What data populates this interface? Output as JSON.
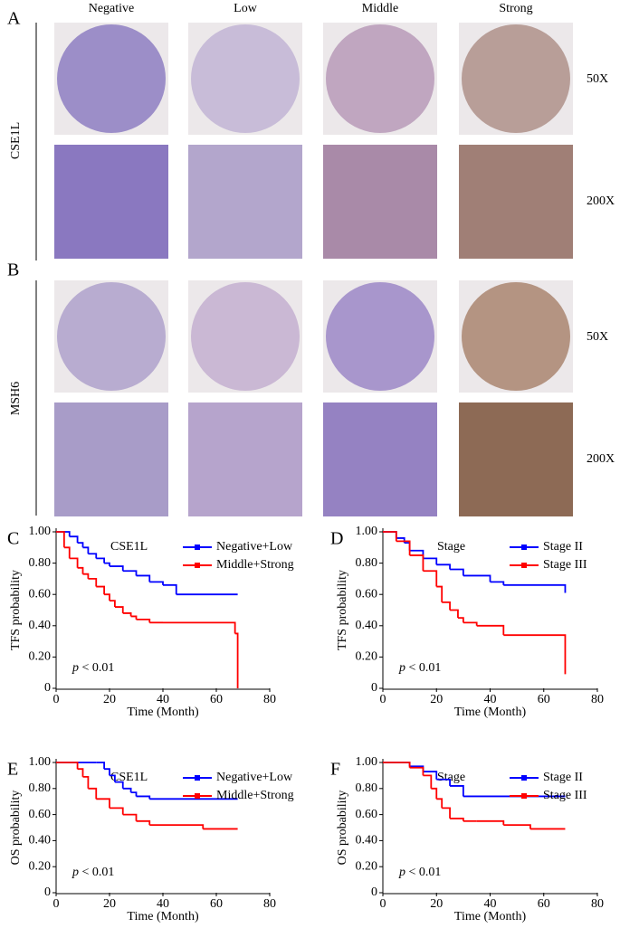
{
  "panel_labels": [
    "A",
    "B",
    "C",
    "D",
    "E",
    "F"
  ],
  "ihc": {
    "columns": [
      "Negative",
      "Low",
      "Middle",
      "Strong"
    ],
    "magnifications": [
      "50X",
      "200X"
    ],
    "markers": [
      "CSE1L",
      "MSH6"
    ]
  },
  "chart_data": [
    {
      "type": "step",
      "title": "CSE1L",
      "xlabel": "Time (Month)",
      "ylabel": "TFS probability",
      "annotation": {
        "symbol": "p",
        "text": "< 0.01"
      },
      "xlim": [
        0,
        80
      ],
      "xticks": [
        0,
        20,
        40,
        60,
        80
      ],
      "ylim": [
        0,
        1
      ],
      "yticks": [
        0,
        {
          "value": 0.2,
          "label": "0.20"
        },
        {
          "value": 0.4,
          "label": "0.40"
        },
        {
          "value": 0.6,
          "label": "0.60"
        },
        {
          "value": 0.8,
          "label": "0.80"
        },
        {
          "value": 1,
          "label": "1.00"
        }
      ],
      "series": [
        {
          "name": "Negative+Low",
          "color": "#0000ff",
          "x": [
            0,
            5,
            8,
            10,
            12,
            15,
            18,
            20,
            25,
            30,
            35,
            40,
            45,
            68
          ],
          "values": [
            1,
            0.97,
            0.93,
            0.9,
            0.86,
            0.83,
            0.8,
            0.78,
            0.75,
            0.72,
            0.68,
            0.66,
            0.6,
            0.6
          ]
        },
        {
          "name": "Middle+Strong",
          "color": "#ff0000",
          "x": [
            0,
            3,
            5,
            8,
            10,
            12,
            15,
            18,
            20,
            22,
            25,
            28,
            30,
            35,
            40,
            67,
            68
          ],
          "values": [
            1,
            0.9,
            0.83,
            0.77,
            0.73,
            0.7,
            0.65,
            0.6,
            0.56,
            0.52,
            0.48,
            0.46,
            0.44,
            0.42,
            0.42,
            0.35,
            0
          ]
        }
      ]
    },
    {
      "type": "step",
      "title": "Stage",
      "xlabel": "Time (Month)",
      "ylabel": "TFS probability",
      "annotation": {
        "symbol": "p",
        "text": "< 0.01"
      },
      "xlim": [
        0,
        80
      ],
      "xticks": [
        0,
        20,
        40,
        60,
        80
      ],
      "ylim": [
        0,
        1
      ],
      "yticks": [
        0,
        {
          "value": 0.2,
          "label": "0.20"
        },
        {
          "value": 0.4,
          "label": "0.40"
        },
        {
          "value": 0.6,
          "label": "0.60"
        },
        {
          "value": 0.8,
          "label": "0.80"
        },
        {
          "value": 1,
          "label": "1.00"
        }
      ],
      "series": [
        {
          "name": "Stage II",
          "color": "#0000ff",
          "x": [
            0,
            5,
            8,
            10,
            15,
            20,
            25,
            30,
            40,
            45,
            67,
            68
          ],
          "values": [
            1,
            0.96,
            0.93,
            0.88,
            0.83,
            0.79,
            0.76,
            0.72,
            0.68,
            0.66,
            0.66,
            0.61
          ]
        },
        {
          "name": "Stage III",
          "color": "#ff0000",
          "x": [
            0,
            5,
            10,
            15,
            20,
            22,
            25,
            28,
            30,
            35,
            45,
            67,
            68
          ],
          "values": [
            1,
            0.94,
            0.85,
            0.75,
            0.65,
            0.55,
            0.5,
            0.45,
            0.42,
            0.4,
            0.34,
            0.34,
            0.09
          ]
        }
      ]
    },
    {
      "type": "step",
      "title": "CSE1L",
      "xlabel": "Time (Month)",
      "ylabel": "OS probability",
      "annotation": {
        "symbol": "p",
        "text": "< 0.01"
      },
      "xlim": [
        0,
        80
      ],
      "xticks": [
        0,
        20,
        40,
        60,
        80
      ],
      "ylim": [
        0,
        1
      ],
      "yticks": [
        0,
        {
          "value": 0.2,
          "label": "0.20"
        },
        {
          "value": 0.4,
          "label": "0.40"
        },
        {
          "value": 0.6,
          "label": "0.60"
        },
        {
          "value": 0.8,
          "label": "0.80"
        },
        {
          "value": 1,
          "label": "1.00"
        }
      ],
      "series": [
        {
          "name": "Negative+Low",
          "color": "#0000ff",
          "x": [
            0,
            15,
            18,
            20,
            22,
            25,
            28,
            30,
            35,
            68
          ],
          "values": [
            1,
            1,
            0.95,
            0.9,
            0.85,
            0.8,
            0.77,
            0.74,
            0.72,
            0.72
          ]
        },
        {
          "name": "Middle+Strong",
          "color": "#ff0000",
          "x": [
            0,
            8,
            10,
            12,
            15,
            20,
            25,
            30,
            35,
            55,
            68
          ],
          "values": [
            1,
            0.95,
            0.89,
            0.8,
            0.72,
            0.65,
            0.6,
            0.55,
            0.52,
            0.49,
            0.49
          ]
        }
      ]
    },
    {
      "type": "step",
      "title": "Stage",
      "xlabel": "Time (Month)",
      "ylabel": "OS probability",
      "annotation": {
        "symbol": "p",
        "text": "< 0.01"
      },
      "xlim": [
        0,
        80
      ],
      "xticks": [
        0,
        20,
        40,
        60,
        80
      ],
      "ylim": [
        0,
        1
      ],
      "yticks": [
        0,
        {
          "value": 0.2,
          "label": "0.20"
        },
        {
          "value": 0.4,
          "label": "0.40"
        },
        {
          "value": 0.6,
          "label": "0.60"
        },
        {
          "value": 0.8,
          "label": "0.80"
        },
        {
          "value": 1,
          "label": "1.00"
        }
      ],
      "series": [
        {
          "name": "Stage II",
          "color": "#0000ff",
          "x": [
            0,
            5,
            10,
            15,
            20,
            25,
            30,
            68
          ],
          "values": [
            1,
            1,
            0.97,
            0.93,
            0.87,
            0.82,
            0.74,
            0.74
          ]
        },
        {
          "name": "Stage III",
          "color": "#ff0000",
          "x": [
            0,
            10,
            15,
            18,
            20,
            22,
            25,
            30,
            35,
            45,
            55,
            68
          ],
          "values": [
            1,
            0.96,
            0.9,
            0.8,
            0.72,
            0.65,
            0.57,
            0.55,
            0.55,
            0.52,
            0.49,
            0.49
          ]
        }
      ]
    }
  ]
}
